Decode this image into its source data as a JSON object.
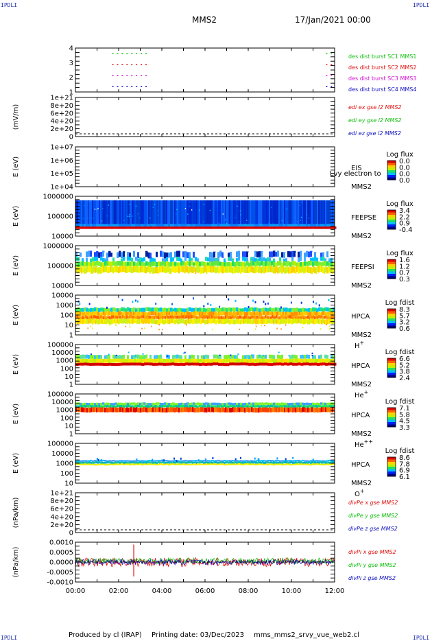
{
  "header": {
    "corner_left_top": "IPDLI",
    "corner_right_top": "IPDLI",
    "corner_left_bottom": "IPDLI",
    "corner_right_bottom": "IPDLI",
    "spacecraft": "MMS2",
    "date": "17/Jan/2021 00:00"
  },
  "footer": {
    "produced_by": "Produced by cl (IRAP)",
    "printing_date": "Printing date: 03/Dec/2023",
    "file": "mms_mms2_srvy_vue_web2.cl"
  },
  "colors": {
    "red": "#e01010",
    "green": "#10c010",
    "blue": "#1010c0",
    "magenta": "#d010d0",
    "colorbar": [
      "#000080",
      "#0020ff",
      "#00c0ff",
      "#20e060",
      "#c0f000",
      "#ffd000",
      "#ff6000",
      "#e00000"
    ]
  },
  "chart_data": [
    {
      "type": "scatter",
      "panel": "burst",
      "ylabel": "",
      "yticks": [
        "4",
        "3",
        "2",
        "1"
      ],
      "ylim": [
        0.5,
        4.5
      ],
      "series": [
        {
          "name": "des dist burst SC1 MMS1",
          "level": 4,
          "color": "#10c010"
        },
        {
          "name": "des dist burst SC2 MMS2",
          "level": 3,
          "color": "#e01010"
        },
        {
          "name": "des dist burst SC3 MMS3",
          "level": 2,
          "color": "#d010d0"
        },
        {
          "name": "des dist burst SC4 MMS4",
          "level": 1,
          "color": "#1010c0"
        }
      ],
      "burst_intervals_hours": [
        [
          1.7,
          3.4
        ],
        [
          11.6,
          11.9
        ]
      ]
    },
    {
      "type": "line",
      "panel": "edi",
      "ylabel": "(mV/m)",
      "yticks": [
        "1e+21",
        "8e+20",
        "6e+20",
        "4e+20",
        "2e+20",
        "0"
      ],
      "ylim": [
        0,
        1e+21
      ],
      "series": [
        {
          "name": "edi ex gse l2 MMS2",
          "color": "#e01010"
        },
        {
          "name": "edi ey gse l2 MMS2",
          "color": "#10c010"
        },
        {
          "name": "edi ez gse l2 MMS2",
          "color": "#1010c0"
        }
      ]
    },
    {
      "type": "heatmap",
      "panel": "eis",
      "ylabel": "E (eV)",
      "yticks": [
        "1e+07",
        "1e+06",
        "1e+05",
        "1e+04"
      ],
      "ylim": [
        10000.0,
        10000000.0
      ],
      "instrument": "EIS",
      "sc": "MMS2",
      "species": "",
      "overlay_label": "Lvy electron to",
      "colorbar_title": "Log flux",
      "colorbar_ticks": [
        "0.0",
        "0.0",
        "0.0",
        "0.0"
      ]
    },
    {
      "type": "heatmap",
      "panel": "feepse",
      "ylabel": "E (eV)",
      "yticks": [
        "1000000",
        "100000",
        "10000"
      ],
      "ylim": [
        10000.0,
        1000000.0
      ],
      "instrument": "FEEPSE",
      "sc": "MMS2",
      "species": "",
      "colorbar_title": "Log flux",
      "colorbar_ticks": [
        "3.4",
        "2.2",
        "0.9",
        "-0.4"
      ]
    },
    {
      "type": "heatmap",
      "panel": "feepsi",
      "ylabel": "E (eV)",
      "yticks": [
        "1000000",
        "100000",
        "10000"
      ],
      "ylim": [
        10000.0,
        1000000.0
      ],
      "instrument": "FEEPSI",
      "sc": "MMS2",
      "species": "",
      "colorbar_title": "Log flux",
      "colorbar_ticks": [
        "1.6",
        "1.2",
        "0.7",
        "0.3"
      ]
    },
    {
      "type": "heatmap",
      "panel": "hpca_h",
      "ylabel": "E (eV)",
      "yticks": [
        "10000",
        "1000",
        "100",
        "10",
        "1"
      ],
      "ylim": [
        1,
        10000.0
      ],
      "instrument": "HPCA",
      "sc": "MMS2",
      "species": "H",
      "species_charge": "+",
      "colorbar_title": "Log fdist",
      "colorbar_ticks": [
        "8.3",
        "5.7",
        "3.2",
        "0.6"
      ]
    },
    {
      "type": "heatmap",
      "panel": "hpca_he",
      "ylabel": "E (eV)",
      "yticks": [
        "100000",
        "10000",
        "1000",
        "100",
        "10",
        "1"
      ],
      "ylim": [
        1,
        100000.0
      ],
      "instrument": "HPCA",
      "sc": "MMS2",
      "species": "He",
      "species_charge": "+",
      "colorbar_title": "Log fdist",
      "colorbar_ticks": [
        "6.6",
        "5.2",
        "3.8",
        "2.4"
      ]
    },
    {
      "type": "heatmap",
      "panel": "hpca_hepp",
      "ylabel": "E (eV)",
      "yticks": [
        "100000",
        "10000",
        "1000",
        "100",
        "10",
        "1"
      ],
      "ylim": [
        1,
        100000.0
      ],
      "instrument": "HPCA",
      "sc": "MMS2",
      "species": "He",
      "species_charge": "++",
      "colorbar_title": "Log fdist",
      "colorbar_ticks": [
        "7.1",
        "5.8",
        "4.5",
        "3.3"
      ]
    },
    {
      "type": "heatmap",
      "panel": "hpca_o",
      "ylabel": "E (eV)",
      "yticks": [
        "100000",
        "10000",
        "1000",
        "100",
        "10"
      ],
      "ylim": [
        10,
        100000.0
      ],
      "instrument": "HPCA",
      "sc": "MMS2",
      "species": "O",
      "species_charge": "+",
      "colorbar_title": "Log fdist",
      "colorbar_ticks": [
        "8.6",
        "7.8",
        "6.9",
        "6.1"
      ]
    },
    {
      "type": "line",
      "panel": "divpe",
      "ylabel": "(nPa/km)",
      "yticks": [
        "1e+21",
        "8e+20",
        "6e+20",
        "4e+20",
        "2e+20",
        "0"
      ],
      "ylim": [
        0,
        1e+21
      ],
      "series": [
        {
          "name": "divPe x gse MMS2",
          "color": "#e01010"
        },
        {
          "name": "divPe y gse MMS2",
          "color": "#10c010"
        },
        {
          "name": "divPe z gse MMS2",
          "color": "#1010c0"
        }
      ]
    },
    {
      "type": "line",
      "panel": "divpi",
      "ylabel": "(nPa/km)",
      "yticks": [
        "0.0010",
        "0.0005",
        "0.0000",
        "-0.0005",
        "-0.0010"
      ],
      "ylim": [
        -0.00125,
        0.00125
      ],
      "series": [
        {
          "name": "divPi x gse MMS2",
          "color": "#e01010"
        },
        {
          "name": "divPi y gse MMS2",
          "color": "#10c010"
        },
        {
          "name": "divPi z gse MMS2",
          "color": "#1010c0"
        }
      ],
      "x": [
        "00:00",
        "02:00",
        "04:00",
        "06:00",
        "08:00",
        "10:00",
        "12:00"
      ],
      "xlim": [
        0,
        12
      ]
    }
  ]
}
